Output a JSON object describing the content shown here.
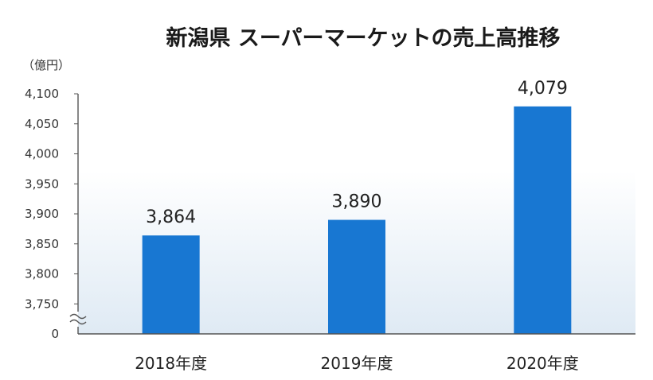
{
  "chart_data": {
    "type": "bar",
    "title": "新潟県 スーパーマーケットの売上高推移",
    "unit_label": "（億円）",
    "categories": [
      "2018年度",
      "2019年度",
      "2020年度"
    ],
    "values": [
      3864,
      3890,
      4079
    ],
    "value_labels": [
      "3,864",
      "3,890",
      "4,079"
    ],
    "y_ticks": [
      3750,
      3800,
      3850,
      3900,
      3950,
      4000,
      4050,
      4100
    ],
    "y_tick_labels": [
      "3,750",
      "3,800",
      "3,850",
      "3,900",
      "3,950",
      "4,000",
      "4,050",
      "4,100"
    ],
    "y_zero_label": "0",
    "ylim": [
      3700,
      4100
    ],
    "axis_break": true,
    "grid": false,
    "legend": "none",
    "colors": {
      "bar": "#1877d2",
      "plot_gradient_top": "#ffffff",
      "plot_gradient_bottom": "#dfeaf4",
      "axis": "#555555"
    }
  }
}
